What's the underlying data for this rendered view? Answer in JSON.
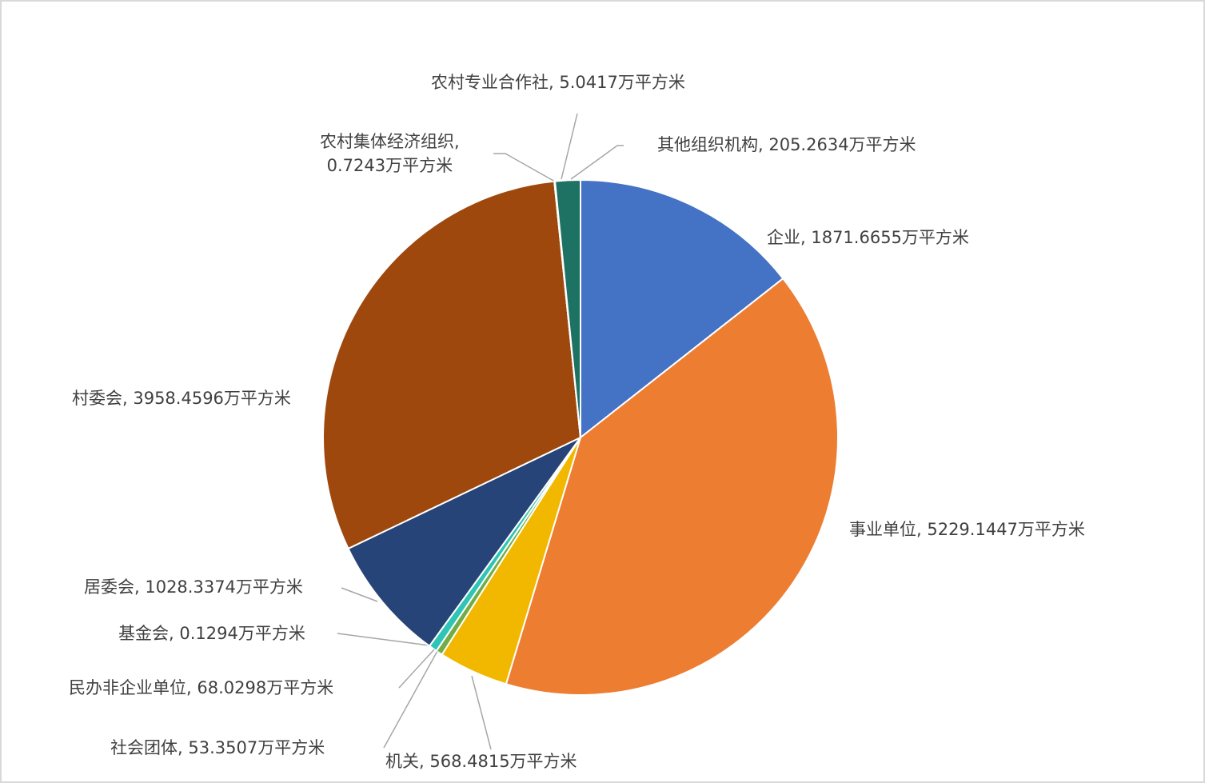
{
  "chart_data": {
    "type": "pie",
    "title": "",
    "unit": "万平方米",
    "start_angle_deg": 0,
    "direction": "clockwise",
    "legend": "none",
    "slices": [
      {
        "name": "企业",
        "value": 1871.6655,
        "label": "企业, 1871.6655万平方米",
        "color": "#4472C4"
      },
      {
        "name": "事业单位",
        "value": 5229.1447,
        "label": "事业单位, 5229.1447万平方米",
        "color": "#ED7D31"
      },
      {
        "name": "机关",
        "value": 568.4815,
        "label": "机关, 568.4815万平方米",
        "color": "#F2B800"
      },
      {
        "name": "社会团体",
        "value": 53.3507,
        "label": "社会团体, 53.3507万平方米",
        "color": "#70AD47"
      },
      {
        "name": "民办非企业单位",
        "value": 68.0298,
        "label": "民办非企业单位, 68.0298万平方米",
        "color": "#2EC4B6"
      },
      {
        "name": "基金会",
        "value": 0.1294,
        "label": "基金会, 0.1294万平方米",
        "color": "#5B9BD5"
      },
      {
        "name": "居委会",
        "value": 1028.3374,
        "label": "居委会, 1028.3374万平方米",
        "color": "#264478"
      },
      {
        "name": "村委会",
        "value": 3958.4596,
        "label": "村委会, 3958.4596万平方米",
        "color": "#9E480E"
      },
      {
        "name": "农村集体经济组织",
        "value": 0.7243,
        "label": "农村集体经济组织, 0.7243万平方米",
        "color": "#636363"
      },
      {
        "name": "农村专业合作社",
        "value": 5.0417,
        "label": "农村专业合作社, 5.0417万平方米",
        "color": "#997300"
      },
      {
        "name": "其他组织机构",
        "value": 205.2634,
        "label": "其他组织机构, 205.2634万平方米",
        "color": "#1E7264"
      }
    ]
  }
}
